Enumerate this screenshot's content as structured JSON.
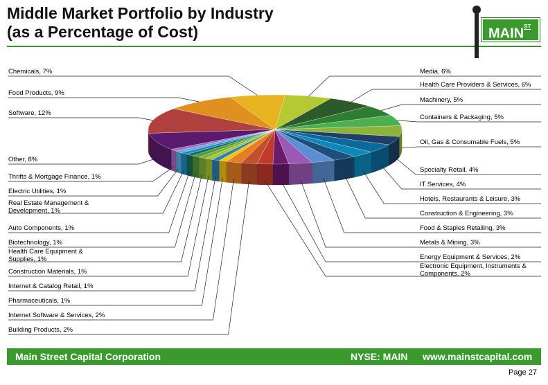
{
  "header": {
    "title_line1": "Middle Market Portfolio by Industry",
    "title_line2": "(as a Percentage of Cost)",
    "logo_text": "MAIN",
    "logo_sup": "ST"
  },
  "chart_data": {
    "type": "pie",
    "title": "Middle Market Portfolio by Industry (as a Percentage of Cost)",
    "slices": [
      {
        "label": "Media, 6%",
        "category": "Media",
        "value": 6,
        "color": "#b5c932"
      },
      {
        "label": "Health Care Providers & Services, 6%",
        "category": "Health Care Providers & Services",
        "value": 6,
        "color": "#2c5a2a"
      },
      {
        "label": "Machinery, 5%",
        "category": "Machinery",
        "value": 5,
        "color": "#2e7d32"
      },
      {
        "label": "Containers & Packaging, 5%",
        "category": "Containers & Packaging",
        "value": 5,
        "color": "#4caf50"
      },
      {
        "label": "Oil, Gas & Consumable Fuels, 5%",
        "category": "Oil, Gas & Consumable Fuels",
        "value": 5,
        "color": "#8db33a"
      },
      {
        "label": "Specialty Retail, 4%",
        "category": "Specialty Retail",
        "value": 4,
        "color": "#1f3f66"
      },
      {
        "label": "IT Services, 4%",
        "category": "IT Services",
        "value": 4,
        "color": "#0b6a9b"
      },
      {
        "label": "Hotels, Restaurants & Leisure, 3%",
        "category": "Hotels, Restaurants & Leisure",
        "value": 3,
        "color": "#0e88b8"
      },
      {
        "label": "Construction & Engineering, 3%",
        "category": "Construction & Engineering",
        "value": 3,
        "color": "#1d4f7c"
      },
      {
        "label": "Food & Staples Retailing, 3%",
        "category": "Food & Staples Retailing",
        "value": 3,
        "color": "#5b8fd1"
      },
      {
        "label": "Metals & Mining, 3%",
        "category": "Metals & Mining",
        "value": 3,
        "color": "#9b59b6"
      },
      {
        "label": "Energy Equipment & Services, 2%",
        "category": "Energy Equipment & Services",
        "value": 2,
        "color": "#6a1b6a"
      },
      {
        "label": "Electronic Equipment, Instruments & Components, 2%",
        "category": "Electronic Equipment, Instruments & Components",
        "value": 2,
        "color": "#c0392b"
      },
      {
        "label": "Building Products, 2%",
        "category": "Building Products",
        "value": 2,
        "color": "#c0502b"
      },
      {
        "label": "Internet Software & Services, 2%",
        "category": "Internet Software & Services",
        "value": 2,
        "color": "#e67e22"
      },
      {
        "label": "Pharmaceuticals, 1%",
        "category": "Pharmaceuticals",
        "value": 1,
        "color": "#f1c40f"
      },
      {
        "label": "Internet & Catalog Retail, 1%",
        "category": "Internet & Catalog Retail",
        "value": 1,
        "color": "#2980b9"
      },
      {
        "label": "Construction Materials, 1%",
        "category": "Construction Materials",
        "value": 1,
        "color": "#a3c635"
      },
      {
        "label": "Health Care Equipment & Supplies, 1%",
        "category": "Health Care Equipment & Supplies",
        "value": 1,
        "color": "#7fb03a"
      },
      {
        "label": "Biotechnology, 1%",
        "category": "Biotechnology",
        "value": 1,
        "color": "#4e9a3c"
      },
      {
        "label": "Auto Components, 1%",
        "category": "Auto Components",
        "value": 1,
        "color": "#1a6e5c"
      },
      {
        "label": "Real Estate Management & Development, 1%",
        "category": "Real Estate Management & Development",
        "value": 1,
        "color": "#1e88c8"
      },
      {
        "label": "Electric Utilities, 1%",
        "category": "Electric Utilities",
        "value": 1,
        "color": "#5dade2"
      },
      {
        "label": "Thrifts & Mortgage Finance, 1%",
        "category": "Thrifts & Mortgage Finance",
        "value": 1,
        "color": "#a569bd"
      },
      {
        "label": "Other, 8%",
        "category": "Other",
        "value": 8,
        "color": "#5a1a6e"
      },
      {
        "label": "Software, 12%",
        "category": "Software",
        "value": 12,
        "color": "#b0413e"
      },
      {
        "label": "Food Products, 9%",
        "category": "Food Products",
        "value": 9,
        "color": "#e0901e"
      },
      {
        "label": "Chemicals, 7%",
        "category": "Chemicals",
        "value": 7,
        "color": "#e8b320"
      }
    ]
  },
  "footer": {
    "company": "Main Street Capital Corporation",
    "ticker": "NYSE: MAIN",
    "url": "www.mainstcapital.com",
    "page": "Page 27"
  }
}
